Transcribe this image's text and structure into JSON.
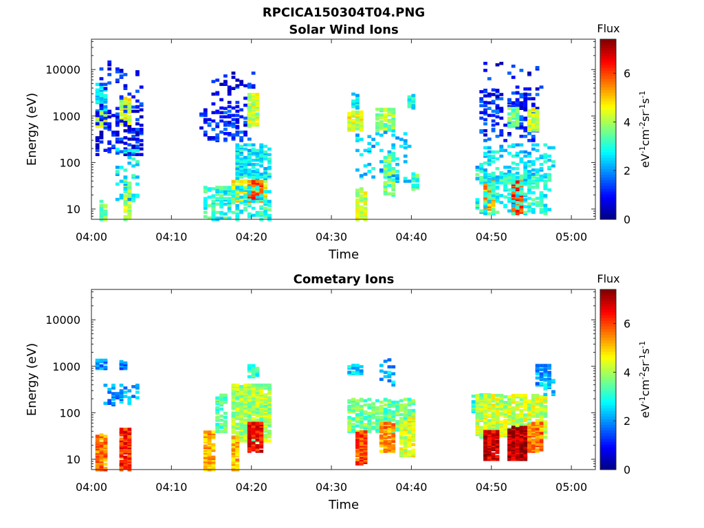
{
  "figure": {
    "title": "RPCICA150304T04.PNG"
  },
  "colorscale": [
    "#00007f",
    "#0000ff",
    "#007fff",
    "#00ffff",
    "#7fff7f",
    "#ffff00",
    "#ff7f00",
    "#ff0000",
    "#7f0000"
  ],
  "chart_data": [
    {
      "type": "heatmap",
      "title": "Solar Wind Ions",
      "xlabel": "Time",
      "ylabel": "Energy (eV)",
      "x_unit": "minutes after 04:00",
      "xlim": [
        0,
        63
      ],
      "ylim": [
        6,
        45000
      ],
      "yscale": "log",
      "xticks": [
        0,
        10,
        20,
        30,
        40,
        50,
        60
      ],
      "xticklabels": [
        "04:00",
        "04:10",
        "04:20",
        "04:30",
        "04:40",
        "04:50",
        "05:00"
      ],
      "yticks": [
        10,
        100,
        1000,
        10000
      ],
      "yticklabels": [
        "10",
        "100",
        "1000",
        "10000"
      ],
      "colorbar": {
        "label": "Flux",
        "units": "eV⁻¹cm⁻²sr⁻¹s⁻¹",
        "range": [
          0,
          7.4
        ],
        "ticks": [
          0,
          2,
          4,
          6
        ],
        "ticklabels": [
          "0",
          "2",
          "4",
          "6"
        ]
      },
      "clusters": [
        {
          "t": [
            0.5,
            2.0
          ],
          "e": [
            600,
            1300
          ],
          "v": 4.2,
          "d": 0.9
        },
        {
          "t": [
            0.5,
            2.0
          ],
          "e": [
            1300,
            5000
          ],
          "v": 2.5,
          "d": 0.6
        },
        {
          "t": [
            3.5,
            5.0
          ],
          "e": [
            700,
            2500
          ],
          "v": 4.3,
          "d": 0.85
        },
        {
          "t": [
            0.5,
            6.5
          ],
          "e": [
            150,
            1600
          ],
          "v": 1.0,
          "d": 0.25
        },
        {
          "t": [
            1.0,
            6.5
          ],
          "e": [
            1500,
            15000
          ],
          "v": 1.0,
          "d": 0.08
        },
        {
          "t": [
            1.0,
            2.0
          ],
          "e": [
            6,
            15
          ],
          "v": 3.6,
          "d": 0.7
        },
        {
          "t": [
            4.0,
            5.0
          ],
          "e": [
            6,
            40
          ],
          "v": 4.0,
          "d": 0.7
        },
        {
          "t": [
            3.0,
            6.0
          ],
          "e": [
            10,
            200
          ],
          "v": 2.6,
          "d": 0.15
        },
        {
          "t": [
            13.5,
            20.0
          ],
          "e": [
            300,
            1500
          ],
          "v": 1.2,
          "d": 0.25
        },
        {
          "t": [
            15.0,
            20.5
          ],
          "e": [
            1500,
            9000
          ],
          "v": 1.0,
          "d": 0.12
        },
        {
          "t": [
            19.5,
            21.0
          ],
          "e": [
            600,
            3000
          ],
          "v": 4.2,
          "d": 0.8
        },
        {
          "t": [
            18.0,
            22.5
          ],
          "e": [
            40,
            250
          ],
          "v": 2.7,
          "d": 0.5
        },
        {
          "t": [
            17.5,
            22.0
          ],
          "e": [
            15,
            40
          ],
          "v": 4.6,
          "d": 0.7
        },
        {
          "t": [
            19.5,
            21.5
          ],
          "e": [
            15,
            40
          ],
          "v": 5.8,
          "d": 0.8
        },
        {
          "t": [
            14.0,
            22.5
          ],
          "e": [
            6,
            30
          ],
          "v": 3.0,
          "d": 0.35
        },
        {
          "t": [
            32.0,
            34.0
          ],
          "e": [
            500,
            1300
          ],
          "v": 4.4,
          "d": 0.9
        },
        {
          "t": [
            32.5,
            33.5
          ],
          "e": [
            1500,
            3000
          ],
          "v": 2.6,
          "d": 0.6
        },
        {
          "t": [
            35.5,
            38.0
          ],
          "e": [
            500,
            1500
          ],
          "v": 3.8,
          "d": 0.6
        },
        {
          "t": [
            39.5,
            40.5
          ],
          "e": [
            1500,
            3000
          ],
          "v": 3.0,
          "d": 0.7
        },
        {
          "t": [
            33.0,
            40.0
          ],
          "e": [
            40,
            500
          ],
          "v": 2.5,
          "d": 0.12
        },
        {
          "t": [
            33.0,
            34.5
          ],
          "e": [
            6,
            30
          ],
          "v": 4.2,
          "d": 0.7
        },
        {
          "t": [
            36.5,
            38.0
          ],
          "e": [
            20,
            150
          ],
          "v": 3.6,
          "d": 0.5
        },
        {
          "t": [
            40.0,
            41.0
          ],
          "e": [
            25,
            60
          ],
          "v": 3.3,
          "d": 0.5
        },
        {
          "t": [
            48.5,
            56.0
          ],
          "e": [
            300,
            4000
          ],
          "v": 1.2,
          "d": 0.22
        },
        {
          "t": [
            49.0,
            56.5
          ],
          "e": [
            1500,
            15000
          ],
          "v": 1.0,
          "d": 0.06
        },
        {
          "t": [
            52.0,
            53.5
          ],
          "e": [
            600,
            1500
          ],
          "v": 3.5,
          "d": 0.6
        },
        {
          "t": [
            54.5,
            55.8
          ],
          "e": [
            500,
            1500
          ],
          "v": 4.3,
          "d": 0.7
        },
        {
          "t": [
            48.0,
            58.0
          ],
          "e": [
            40,
            250
          ],
          "v": 2.6,
          "d": 0.25
        },
        {
          "t": [
            49.0,
            50.5
          ],
          "e": [
            10,
            40
          ],
          "v": 5.2,
          "d": 0.8
        },
        {
          "t": [
            52.5,
            54.0
          ],
          "e": [
            8,
            40
          ],
          "v": 6.2,
          "d": 0.85
        },
        {
          "t": [
            48.0,
            57.5
          ],
          "e": [
            8,
            60
          ],
          "v": 3.0,
          "d": 0.3
        }
      ]
    },
    {
      "type": "heatmap",
      "title": "Cometary Ions",
      "xlabel": "Time",
      "ylabel": "Energy (eV)",
      "x_unit": "minutes after 04:00",
      "xlim": [
        0,
        63
      ],
      "ylim": [
        6,
        45000
      ],
      "yscale": "log",
      "xticks": [
        0,
        10,
        20,
        30,
        40,
        50,
        60
      ],
      "xticklabels": [
        "04:00",
        "04:10",
        "04:20",
        "04:30",
        "04:40",
        "04:50",
        "05:00"
      ],
      "yticks": [
        10,
        100,
        1000,
        10000
      ],
      "yticklabels": [
        "10",
        "100",
        "1000",
        "10000"
      ],
      "colorbar": {
        "label": "Flux",
        "units": "eV⁻¹cm⁻²sr⁻¹s⁻¹",
        "range": [
          0,
          7.4
        ],
        "ticks": [
          0,
          2,
          4,
          6
        ],
        "ticklabels": [
          "0",
          "2",
          "4",
          "6"
        ]
      },
      "clusters": [
        {
          "t": [
            0.5,
            2.0
          ],
          "e": [
            900,
            1400
          ],
          "v": 1.8,
          "d": 0.6
        },
        {
          "t": [
            3.5,
            4.5
          ],
          "e": [
            900,
            1400
          ],
          "v": 1.8,
          "d": 0.6
        },
        {
          "t": [
            1.5,
            6.0
          ],
          "e": [
            150,
            400
          ],
          "v": 2.0,
          "d": 0.25
        },
        {
          "t": [
            0.5,
            2.0
          ],
          "e": [
            6,
            35
          ],
          "v": 5.6,
          "d": 0.85
        },
        {
          "t": [
            3.5,
            5.0
          ],
          "e": [
            6,
            45
          ],
          "v": 6.2,
          "d": 0.85
        },
        {
          "t": [
            15.5,
            17.0
          ],
          "e": [
            40,
            250
          ],
          "v": 3.4,
          "d": 0.5
        },
        {
          "t": [
            17.5,
            22.5
          ],
          "e": [
            25,
            400
          ],
          "v": 4.0,
          "d": 0.75
        },
        {
          "t": [
            19.5,
            21.5
          ],
          "e": [
            15,
            60
          ],
          "v": 6.5,
          "d": 0.8
        },
        {
          "t": [
            19.5,
            21.0
          ],
          "e": [
            600,
            1100
          ],
          "v": 3.2,
          "d": 0.6
        },
        {
          "t": [
            14.0,
            15.5
          ],
          "e": [
            6,
            40
          ],
          "v": 5.2,
          "d": 0.8
        },
        {
          "t": [
            17.5,
            18.5
          ],
          "e": [
            6,
            30
          ],
          "v": 5.0,
          "d": 0.7
        },
        {
          "t": [
            32.0,
            34.0
          ],
          "e": [
            700,
            1100
          ],
          "v": 2.4,
          "d": 0.6
        },
        {
          "t": [
            32.0,
            40.5
          ],
          "e": [
            40,
            200
          ],
          "v": 3.6,
          "d": 0.55
        },
        {
          "t": [
            33.0,
            34.5
          ],
          "e": [
            8,
            40
          ],
          "v": 6.0,
          "d": 0.85
        },
        {
          "t": [
            36.0,
            38.0
          ],
          "e": [
            15,
            60
          ],
          "v": 5.4,
          "d": 0.7
        },
        {
          "t": [
            38.5,
            40.5
          ],
          "e": [
            12,
            80
          ],
          "v": 4.4,
          "d": 0.6
        },
        {
          "t": [
            35.5,
            38.0
          ],
          "e": [
            400,
            1500
          ],
          "v": 2.2,
          "d": 0.15
        },
        {
          "t": [
            47.5,
            50.0
          ],
          "e": [
            100,
            250
          ],
          "v": 3.2,
          "d": 0.5
        },
        {
          "t": [
            48.0,
            57.0
          ],
          "e": [
            30,
            250
          ],
          "v": 4.2,
          "d": 0.7
        },
        {
          "t": [
            49.0,
            51.0
          ],
          "e": [
            10,
            40
          ],
          "v": 6.8,
          "d": 0.9
        },
        {
          "t": [
            52.0,
            54.5
          ],
          "e": [
            10,
            50
          ],
          "v": 7.0,
          "d": 0.9
        },
        {
          "t": [
            54.5,
            56.5
          ],
          "e": [
            15,
            60
          ],
          "v": 5.6,
          "d": 0.8
        },
        {
          "t": [
            55.5,
            57.5
          ],
          "e": [
            400,
            1100
          ],
          "v": 2.2,
          "d": 0.5
        },
        {
          "t": [
            56.5,
            57.8
          ],
          "e": [
            250,
            500
          ],
          "v": 2.5,
          "d": 0.5
        }
      ]
    }
  ]
}
